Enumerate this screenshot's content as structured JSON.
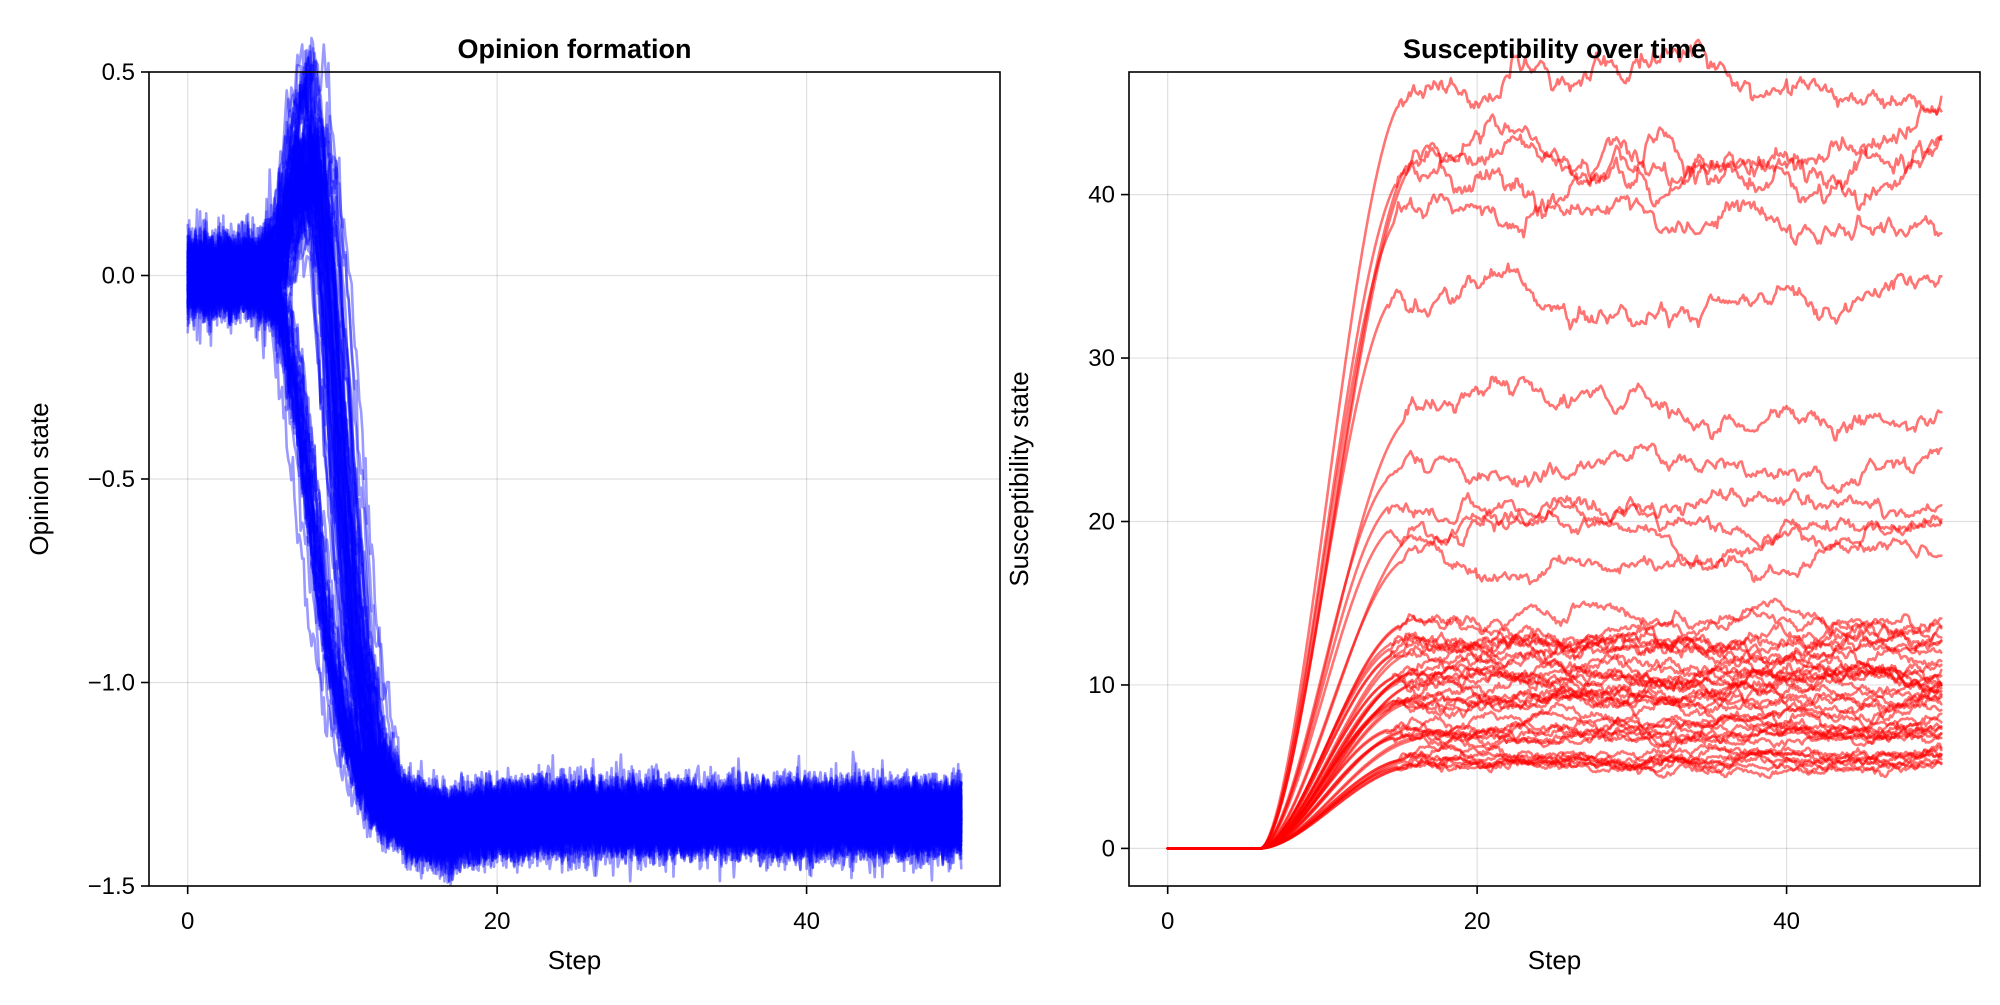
{
  "chart_data": [
    {
      "type": "line",
      "title": "Opinion formation",
      "xlabel": "Step",
      "ylabel": "Opinion state",
      "xlim": [
        -2.5,
        52.5
      ],
      "ylim": [
        -1.5,
        0.5
      ],
      "xticks": [
        0,
        20,
        40
      ],
      "yticks": [
        0.5,
        0.0,
        -0.5,
        -1.0,
        -1.5
      ],
      "ytick_labels": [
        "0.5",
        "0.0",
        "−0.5",
        "−1.0",
        "−1.5"
      ],
      "grid": true,
      "color": "#0000ff",
      "opacity": 0.4,
      "n_series": 100,
      "x": [
        0,
        2,
        4,
        5,
        6,
        7,
        8,
        9,
        10,
        11,
        12,
        13,
        14,
        16,
        18,
        20,
        25,
        30,
        35,
        40,
        45,
        50
      ],
      "representative_series": [
        {
          "values": [
            0.0,
            0.0,
            0.0,
            0.02,
            0.08,
            0.22,
            0.3,
            0.05,
            -0.45,
            -0.9,
            -1.15,
            -1.26,
            -1.31,
            -1.34,
            -1.34,
            -1.33,
            -1.33,
            -1.33,
            -1.33,
            -1.33,
            -1.33,
            -1.33
          ]
        },
        {
          "values": [
            0.0,
            0.0,
            0.0,
            0.0,
            0.0,
            0.35,
            0.47,
            0.1,
            -0.5,
            -0.95,
            -1.18,
            -1.28,
            -1.32,
            -1.34,
            -1.34,
            -1.33,
            -1.33,
            -1.33,
            -1.33,
            -1.33,
            -1.33,
            -1.33
          ]
        },
        {
          "values": [
            0.0,
            0.0,
            0.0,
            -0.02,
            -0.1,
            -0.3,
            -0.6,
            -0.9,
            -1.1,
            -1.22,
            -1.3,
            -1.34,
            -1.36,
            -1.38,
            -1.37,
            -1.35,
            -1.34,
            -1.34,
            -1.34,
            -1.34,
            -1.34,
            -1.34
          ]
        }
      ],
      "spread_after_step_14": [
        -1.45,
        -1.22
      ]
    },
    {
      "type": "line",
      "title": "Susceptibility over time",
      "xlabel": "Step",
      "ylabel": "Susceptibility state",
      "xlim": [
        -2.5,
        52.5
      ],
      "ylim": [
        -2.3,
        47.5
      ],
      "xticks": [
        0,
        20,
        40
      ],
      "yticks": [
        0,
        10,
        20,
        30,
        40
      ],
      "ytick_labels": [
        "0",
        "10",
        "20",
        "30",
        "40"
      ],
      "grid": true,
      "color": "#ff0000",
      "opacity": 0.55,
      "x": [
        0,
        6,
        50
      ],
      "plateaus": [
        46.3,
        42.8,
        42.4,
        41.5,
        38.9,
        34.0,
        26.6,
        23.0,
        21.3,
        19.8,
        19.6,
        17.9,
        13.8,
        12.5,
        12.3,
        12.0,
        10.9,
        10.6,
        10.4,
        10.2,
        9.2,
        9.0,
        8.8,
        7.3,
        7.1,
        6.9,
        6.8,
        5.6,
        5.4,
        5.2,
        5.0
      ],
      "plateau_reached_by_step": 16
    }
  ]
}
